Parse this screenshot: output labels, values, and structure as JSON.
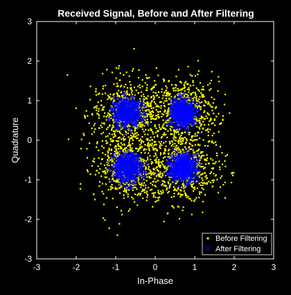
{
  "chart_data": {
    "type": "scatter",
    "title": "Received Signal, Before and After Filtering",
    "xlabel": "In-Phase",
    "ylabel": "Quadrature",
    "xlim": [
      -3,
      3
    ],
    "ylim": [
      -3,
      3
    ],
    "xticks": [
      -3,
      -2,
      -1,
      0,
      1,
      2,
      3
    ],
    "yticks": [
      -3,
      -2,
      -1,
      0,
      1,
      2,
      3
    ],
    "grid": false,
    "legend_location": "bottom-right",
    "constellation_points": [
      [
        -0.7,
        0.7
      ],
      [
        0.7,
        0.7
      ],
      [
        -0.7,
        -0.7
      ],
      [
        0.7,
        -0.7
      ]
    ],
    "series": [
      {
        "name": "Before Filtering",
        "marker": "dot",
        "color": "#ffff00",
        "spread_sigma": 0.45,
        "approx_extent": [
          -2.4,
          2.4
        ]
      },
      {
        "name": "After Filtering",
        "marker": "x",
        "color": "#0000ff",
        "spread_sigma": 0.17,
        "approx_extent": [
          -1.2,
          1.2
        ]
      }
    ],
    "colors": {
      "background": "#000000",
      "axes": "#ffffff",
      "text": "#ffffff"
    }
  }
}
